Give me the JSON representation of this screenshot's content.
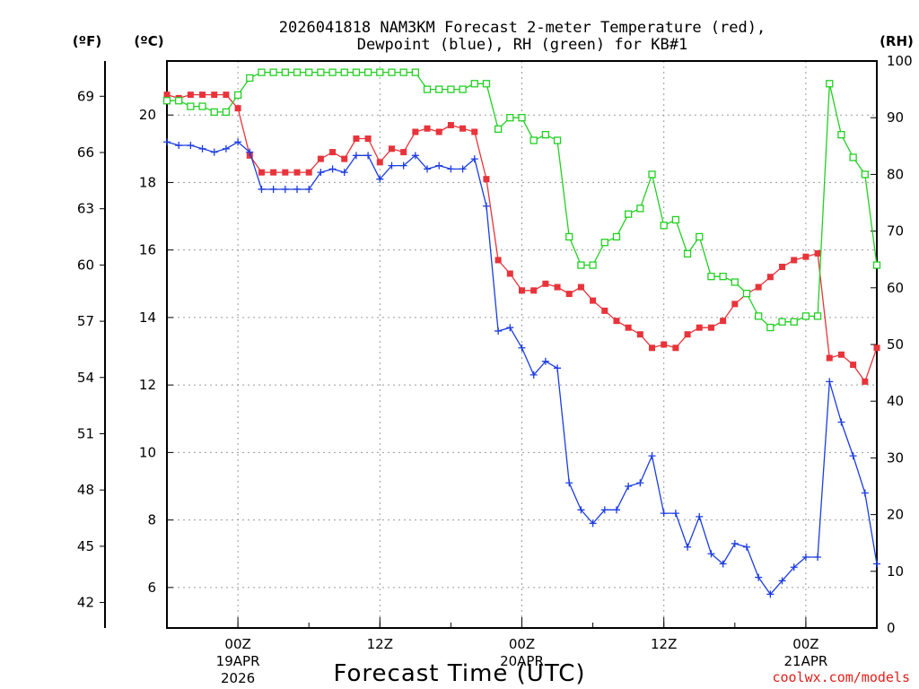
{
  "chart_data": {
    "type": "line",
    "title": "2026041818 NAM3KM Forecast 2-meter Temperature (red),",
    "subtitle": "Dewpoint (blue), RH (green) for KB#1",
    "xlabel": "Forecast Time (UTC)",
    "credit": "coolwx.com/models",
    "units": {
      "fahrenheit": "(ºF)",
      "celsius": "(ºC)",
      "rh": "(RH)"
    },
    "x_hours": [
      -6,
      -5,
      -4,
      -3,
      -2,
      -1,
      0,
      1,
      2,
      3,
      4,
      5,
      6,
      7,
      8,
      9,
      10,
      11,
      12,
      13,
      14,
      15,
      16,
      17,
      18,
      19,
      20,
      21,
      22,
      23,
      24,
      25,
      26,
      27,
      28,
      29,
      30,
      31,
      32,
      33,
      34,
      35,
      36,
      37,
      38,
      39,
      40,
      41,
      42,
      43,
      44,
      45,
      46,
      47,
      48,
      49,
      50,
      51,
      52,
      53,
      54
    ],
    "x_range": [
      -6,
      54
    ],
    "x_ticks": [
      {
        "hour": 0,
        "label": "00Z",
        "date": "19APR",
        "year": "2026"
      },
      {
        "hour": 12,
        "label": "12Z",
        "date": "",
        "year": ""
      },
      {
        "hour": 24,
        "label": "00Z",
        "date": "20APR",
        "year": ""
      },
      {
        "hour": 36,
        "label": "12Z",
        "date": "",
        "year": ""
      },
      {
        "hour": 48,
        "label": "00Z",
        "date": "21APR",
        "year": ""
      }
    ],
    "celsius_axis": {
      "range": [
        4.8,
        21.6
      ],
      "ticks": [
        6,
        8,
        10,
        12,
        14,
        16,
        18,
        20
      ]
    },
    "fahrenheit_axis": {
      "ticks": [
        42,
        45,
        48,
        51,
        54,
        57,
        60,
        63,
        66,
        69
      ]
    },
    "rh_axis": {
      "range": [
        0,
        100
      ],
      "ticks": [
        0,
        10,
        20,
        30,
        40,
        50,
        60,
        70,
        80,
        90,
        100
      ]
    },
    "series": [
      {
        "name": "Temperature",
        "axis": "celsius",
        "color": "#e8333a",
        "marker": "filled-square",
        "values": [
          20.6,
          20.5,
          20.6,
          20.6,
          20.6,
          20.6,
          20.2,
          18.8,
          18.3,
          18.3,
          18.3,
          18.3,
          18.3,
          18.7,
          18.9,
          18.7,
          19.3,
          19.3,
          18.6,
          19.0,
          18.9,
          19.5,
          19.6,
          19.5,
          19.7,
          19.6,
          19.5,
          18.1,
          15.7,
          15.3,
          14.8,
          14.8,
          15.0,
          14.9,
          14.7,
          14.9,
          14.5,
          14.2,
          13.9,
          13.7,
          13.5,
          13.1,
          13.2,
          13.1,
          13.5,
          13.7,
          13.7,
          13.9,
          14.4,
          14.7,
          14.9,
          15.2,
          15.5,
          15.7,
          15.8,
          15.9,
          12.8,
          12.9,
          12.6,
          12.1,
          13.1
        ]
      },
      {
        "name": "Dewpoint",
        "axis": "celsius",
        "color": "#1c3de0",
        "marker": "plus",
        "values": [
          19.2,
          19.1,
          19.1,
          19.0,
          18.9,
          19.0,
          19.2,
          18.9,
          17.8,
          17.8,
          17.8,
          17.8,
          17.8,
          18.3,
          18.4,
          18.3,
          18.8,
          18.8,
          18.1,
          18.5,
          18.5,
          18.8,
          18.4,
          18.5,
          18.4,
          18.4,
          18.7,
          17.3,
          13.6,
          13.7,
          13.1,
          12.3,
          12.7,
          12.5,
          9.1,
          8.3,
          7.9,
          8.3,
          8.3,
          9.0,
          9.1,
          9.9,
          8.2,
          8.2,
          7.2,
          8.1,
          7.0,
          6.7,
          7.3,
          7.2,
          6.3,
          5.8,
          6.2,
          6.6,
          6.9,
          6.9,
          12.1,
          10.9,
          9.9,
          8.8,
          6.7
        ]
      },
      {
        "name": "RH",
        "axis": "rh",
        "color": "#22d022",
        "marker": "open-square",
        "values": [
          93,
          93,
          92,
          92,
          91,
          91,
          94,
          97,
          98,
          98,
          98,
          98,
          98,
          98,
          98,
          98,
          98,
          98,
          98,
          98,
          98,
          98,
          95,
          95,
          95,
          95,
          96,
          96,
          88,
          90,
          90,
          86,
          87,
          86,
          69,
          64,
          64,
          68,
          69,
          73,
          74,
          80,
          71,
          72,
          66,
          69,
          62,
          62,
          61,
          59,
          55,
          53,
          54,
          54,
          55,
          55,
          96,
          87,
          83,
          80,
          64
        ]
      }
    ]
  }
}
